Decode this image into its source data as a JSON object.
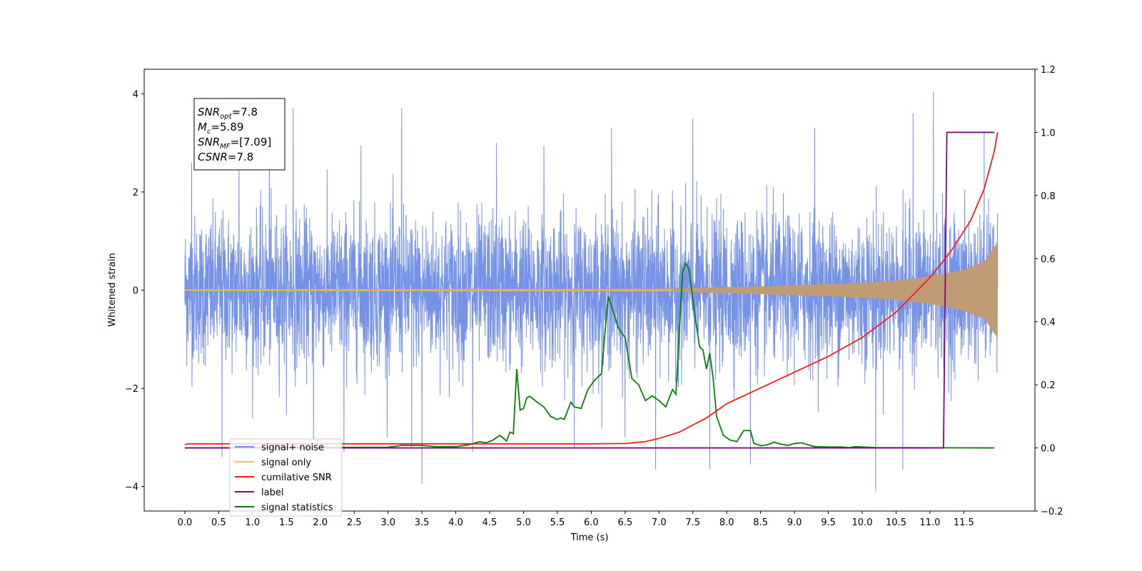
{
  "chart_data": {
    "type": "line",
    "title": "",
    "xlabel": "Time (s)",
    "ylabel": "Whitened strain",
    "xlim": [
      -0.6,
      12.55
    ],
    "ylim": [
      -4.5,
      4.5
    ],
    "y2lim": [
      -0.2,
      1.2
    ],
    "x_ticks": [
      0.0,
      0.5,
      1.0,
      1.5,
      2.0,
      2.5,
      3.0,
      3.5,
      4.0,
      4.5,
      5.0,
      5.5,
      6.0,
      6.5,
      7.0,
      7.5,
      8.0,
      8.5,
      9.0,
      9.5,
      10.0,
      10.5,
      11.0,
      11.5
    ],
    "x_tick_labels": [
      "0.0",
      "0.5",
      "1.0",
      "1.5",
      "2.0",
      "2.5",
      "3.0",
      "3.5",
      "4.0",
      "4.5",
      "5.0",
      "5.5",
      "6.0",
      "6.5",
      "7.0",
      "7.5",
      "8.0",
      "8.5",
      "9.0",
      "9.5",
      "10.0",
      "10.5",
      "11.0",
      "11.5"
    ],
    "y_ticks": [
      -4,
      -2,
      0,
      2,
      4
    ],
    "y_tick_labels": [
      "−4",
      "−2",
      "0",
      "2",
      "4"
    ],
    "y2_ticks": [
      -0.2,
      0.0,
      0.2,
      0.4,
      0.6,
      0.8,
      1.0,
      1.2
    ],
    "y2_tick_labels": [
      "−0.2",
      "0.0",
      "0.2",
      "0.4",
      "0.6",
      "0.8",
      "1.0",
      "1.2"
    ],
    "grid": false,
    "legend_position": "lower-left",
    "annotation": {
      "lines": [
        {
          "main": "SNR",
          "sub": "opt",
          "rest": "=7.8"
        },
        {
          "main": "M",
          "sub": "c",
          "rest": "=5.89"
        },
        {
          "main": "SNR",
          "sub": "MF",
          "rest": "=[7.09]"
        },
        {
          "main": "CSNR",
          "sub": "",
          "rest": "=7.8"
        }
      ]
    },
    "series": [
      {
        "name": "signal+ noise",
        "axis": "left",
        "color": "#6f8ce5",
        "t_range": [
          0.0,
          12.0
        ],
        "envelope_sigma": 0.75,
        "peaks": [
          {
            "x": 0.1,
            "y": 2.6
          },
          {
            "x": 0.55,
            "y": -3.4
          },
          {
            "x": 0.8,
            "y": 3.0
          },
          {
            "x": 1.25,
            "y": 3.35
          },
          {
            "x": 1.6,
            "y": 3.7
          },
          {
            "x": 1.9,
            "y": -3.3
          },
          {
            "x": 2.35,
            "y": -3.3
          },
          {
            "x": 2.6,
            "y": 2.95
          },
          {
            "x": 3.2,
            "y": 3.7
          },
          {
            "x": 3.35,
            "y": -3.2
          },
          {
            "x": 3.5,
            "y": -3.95
          },
          {
            "x": 4.25,
            "y": -3.3
          },
          {
            "x": 4.6,
            "y": 3.0
          },
          {
            "x": 5.3,
            "y": 2.95
          },
          {
            "x": 5.75,
            "y": -3.2
          },
          {
            "x": 6.3,
            "y": 3.3
          },
          {
            "x": 6.5,
            "y": -3.0
          },
          {
            "x": 6.95,
            "y": -3.65
          },
          {
            "x": 7.5,
            "y": 3.5
          },
          {
            "x": 7.75,
            "y": -3.65
          },
          {
            "x": 8.35,
            "y": -3.55
          },
          {
            "x": 9.3,
            "y": 3.3
          },
          {
            "x": 10.2,
            "y": -4.1
          },
          {
            "x": 10.6,
            "y": -3.65
          },
          {
            "x": 10.75,
            "y": 3.6
          },
          {
            "x": 11.05,
            "y": 4.05
          },
          {
            "x": 11.8,
            "y": 3.2
          }
        ]
      },
      {
        "name": "signal only",
        "axis": "left",
        "color": "#f5c062",
        "fill_color": "#bf9c76",
        "t_range": [
          0.0,
          12.0
        ],
        "envelope": {
          "x": [
            0.0,
            7.0,
            8.0,
            9.0,
            10.0,
            10.5,
            11.0,
            11.5,
            11.8,
            12.0
          ],
          "y": [
            0.02,
            0.03,
            0.06,
            0.1,
            0.15,
            0.2,
            0.28,
            0.42,
            0.58,
            0.98
          ]
        }
      },
      {
        "name": "cumilative SNR",
        "axis": "right",
        "color": "#ff1a1a",
        "x": [
          0.0,
          0.05,
          1.0,
          3.0,
          5.0,
          6.0,
          6.5,
          6.8,
          7.0,
          7.3,
          7.7,
          8.0,
          8.5,
          9.0,
          9.5,
          10.0,
          10.5,
          11.0,
          11.3,
          11.6,
          11.8,
          11.95,
          12.0
        ],
        "y": [
          0.01,
          0.013,
          0.013,
          0.013,
          0.013,
          0.013,
          0.014,
          0.02,
          0.03,
          0.05,
          0.095,
          0.14,
          0.19,
          0.24,
          0.29,
          0.35,
          0.43,
          0.54,
          0.62,
          0.72,
          0.82,
          0.94,
          1.0
        ]
      },
      {
        "name": "label",
        "axis": "right",
        "color": "#7b0a82",
        "x": [
          0.0,
          11.2,
          11.25,
          11.95
        ],
        "y": [
          0.0,
          0.0,
          1.0,
          1.0
        ]
      },
      {
        "name": "signal statistics",
        "axis": "right",
        "color": "#0a7d0a",
        "x": [
          0.0,
          3.0,
          3.2,
          3.5,
          3.7,
          4.0,
          4.2,
          4.35,
          4.45,
          4.55,
          4.65,
          4.75,
          4.8,
          4.85,
          4.9,
          4.95,
          5.0,
          5.05,
          5.1,
          5.2,
          5.3,
          5.4,
          5.5,
          5.55,
          5.6,
          5.7,
          5.75,
          5.85,
          5.95,
          6.05,
          6.15,
          6.25,
          6.3,
          6.4,
          6.5,
          6.6,
          6.7,
          6.8,
          6.9,
          7.0,
          7.1,
          7.2,
          7.25,
          7.3,
          7.35,
          7.4,
          7.45,
          7.5,
          7.55,
          7.6,
          7.65,
          7.7,
          7.75,
          7.8,
          7.85,
          7.95,
          8.05,
          8.15,
          8.25,
          8.35,
          8.4,
          8.5,
          8.6,
          8.7,
          8.8,
          8.9,
          9.0,
          9.1,
          9.3,
          9.5,
          9.7,
          9.8,
          9.9,
          10.0,
          10.2,
          11.95
        ],
        "y": [
          0.0,
          0.002,
          0.008,
          0.008,
          0.004,
          0.004,
          0.01,
          0.02,
          0.016,
          0.025,
          0.04,
          0.022,
          0.05,
          0.045,
          0.25,
          0.12,
          0.125,
          0.16,
          0.163,
          0.145,
          0.13,
          0.1,
          0.09,
          0.095,
          0.09,
          0.145,
          0.13,
          0.125,
          0.185,
          0.215,
          0.235,
          0.48,
          0.45,
          0.38,
          0.35,
          0.22,
          0.2,
          0.15,
          0.165,
          0.15,
          0.13,
          0.185,
          0.17,
          0.37,
          0.56,
          0.585,
          0.56,
          0.47,
          0.39,
          0.32,
          0.31,
          0.25,
          0.3,
          0.22,
          0.1,
          0.04,
          0.025,
          0.02,
          0.055,
          0.055,
          0.015,
          0.007,
          0.01,
          0.018,
          0.012,
          0.008,
          0.014,
          0.016,
          0.004,
          0.003,
          0.003,
          0.001,
          0.004,
          0.003,
          0.001,
          0.0
        ]
      }
    ],
    "legend": [
      {
        "label": "signal+ noise",
        "color": "#6f8ce5"
      },
      {
        "label": "signal only",
        "color": "#f5c062"
      },
      {
        "label": "cumilative SNR",
        "color": "#ff1a1a"
      },
      {
        "label": "label",
        "color": "#7b0a82"
      },
      {
        "label": "signal statistics",
        "color": "#0a7d0a"
      }
    ]
  }
}
